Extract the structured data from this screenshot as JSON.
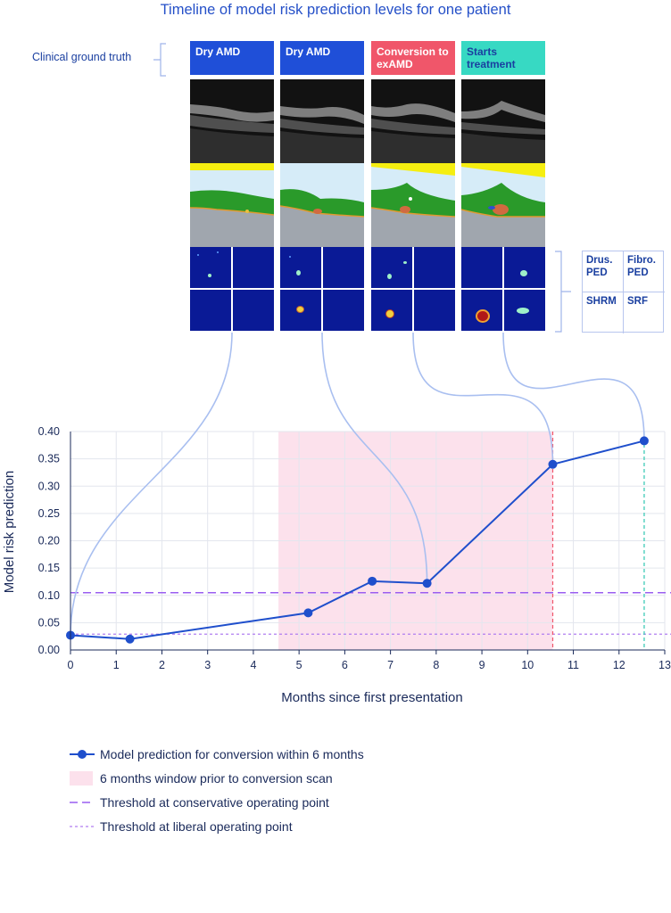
{
  "title": "Timeline of model risk prediction levels for one patient",
  "ground_truth_label": "Clinical ground truth",
  "columns": [
    {
      "label": "Dry AMD",
      "color": "#1f4fd8",
      "text_color": "#ffffff"
    },
    {
      "label": "Dry AMD",
      "color": "#1f4fd8",
      "text_color": "#ffffff"
    },
    {
      "label": "Conversion to exAMD",
      "color": "#f0566a",
      "text_color": "#ffffff"
    },
    {
      "label": "Starts treatment",
      "color": "#37d9c3",
      "text_color": "#1a3fa0"
    }
  ],
  "map_legend": {
    "drusenoid_ped": "Drus. PED",
    "fibrovascular_ped": "Fibro. PED",
    "shrm": "SHRM",
    "srf": "SRF"
  },
  "chart_data": {
    "type": "line",
    "title": "",
    "xlabel": "Months since first presentation",
    "ylabel": "Model risk prediction",
    "xlim": [
      0,
      13
    ],
    "ylim": [
      0,
      0.4
    ],
    "xticks": [
      0,
      1,
      2,
      3,
      4,
      5,
      6,
      7,
      8,
      9,
      10,
      11,
      12,
      13
    ],
    "yticks": [
      "0.00",
      "0.05",
      "0.10",
      "0.15",
      "0.20",
      "0.25",
      "0.30",
      "0.35",
      "0.40"
    ],
    "grid": true,
    "series": [
      {
        "name": "Model prediction for conversion within 6 months",
        "color": "#1f4fcc",
        "x": [
          0,
          1.3,
          5.2,
          6.6,
          7.8,
          10.55,
          12.55
        ],
        "y": [
          0.027,
          0.02,
          0.068,
          0.126,
          0.122,
          0.34,
          0.383
        ]
      }
    ],
    "window": {
      "name": "6 months window prior to conversion scan",
      "x_start": 4.55,
      "x_end": 10.55,
      "color": "#fce1ec"
    },
    "thresholds": [
      {
        "name": "Threshold at conservative operating point",
        "y": 0.105,
        "color": "#9a5ef0"
      },
      {
        "name": "Threshold at liberal operating point",
        "y": 0.029,
        "color": "#b07ef0"
      }
    ],
    "vlines": [
      {
        "x": 10.55,
        "color": "#f0566a"
      },
      {
        "x": 12.55,
        "color": "#2dc7b0"
      }
    ],
    "scan_links": [
      0,
      4,
      5,
      6
    ],
    "legend_position": "bottom"
  }
}
